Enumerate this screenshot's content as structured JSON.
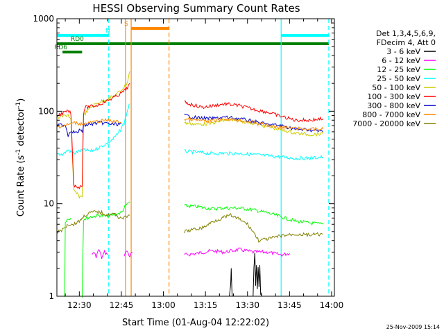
{
  "chart_data": {
    "type": "line",
    "title": "HESSI Observing Summary Count Rates",
    "xlabel": "Start Time (01-Aug-04 12:22:02)",
    "ylabel_main": "Count Rate (s",
    "ylabel_sup1": "-1",
    "ylabel_mid": " detector",
    "ylabel_sup2": "-1",
    "ylabel_end": ")",
    "x_ticks": [
      {
        "label": "12:30",
        "min": 8
      },
      {
        "label": "12:45",
        "min": 23
      },
      {
        "label": "13:00",
        "min": 38
      },
      {
        "label": "13:15",
        "min": 53
      },
      {
        "label": "13:30",
        "min": 68
      },
      {
        "label": "13:45",
        "min": 83
      },
      {
        "label": "14:00",
        "min": 98
      }
    ],
    "y_ticks": [
      {
        "label": "1",
        "v": 1
      },
      {
        "label": "10",
        "v": 10
      },
      {
        "label": "100",
        "v": 100
      },
      {
        "label": "1000",
        "v": 1000
      }
    ],
    "xlim_minutes": [
      0,
      99
    ],
    "ylim": [
      1,
      1000
    ],
    "y_scale": "log",
    "legend_header": [
      "Det 1,3,4,5,6,9,",
      "FDecim 4, Att 0"
    ],
    "series": [
      {
        "name": "3 - 6 keV",
        "color": "#000000",
        "segments": [
          [
            [
              61.5,
              1
            ],
            [
              62,
              1.3
            ],
            [
              62.2,
              2
            ],
            [
              62.4,
              1.2
            ],
            [
              62.6,
              1
            ]
          ],
          [
            [
              70,
              1
            ],
            [
              70.3,
              2
            ],
            [
              70.6,
              3
            ],
            [
              70.9,
              1.3
            ],
            [
              71.2,
              2.2
            ],
            [
              71.5,
              1.2
            ],
            [
              71.8,
              2
            ],
            [
              72.1,
              1.3
            ],
            [
              72.4,
              2.1
            ],
            [
              72.7,
              1.1
            ],
            [
              73,
              1
            ]
          ]
        ]
      },
      {
        "name": "6 - 12 keV",
        "color": "#ff00ff",
        "segments": [
          [
            [
              12.5,
              2.8
            ],
            [
              13,
              3
            ],
            [
              14,
              2.7
            ],
            [
              15,
              3.2
            ],
            [
              16,
              2.6
            ],
            [
              17,
              3
            ],
            [
              18,
              2.8
            ]
          ],
          [
            [
              24,
              2.8
            ],
            [
              25,
              3.1
            ],
            [
              26,
              2.7
            ],
            [
              27,
              3
            ]
          ],
          [
            [
              45.5,
              2.8
            ],
            [
              50,
              2.9
            ],
            [
              55,
              3.1
            ],
            [
              60,
              3
            ],
            [
              65,
              3.2
            ],
            [
              70,
              3
            ],
            [
              75,
              3
            ],
            [
              80,
              2.8
            ],
            [
              83,
              2.9
            ]
          ]
        ]
      },
      {
        "name": "12 - 25 keV",
        "color": "#00ff00",
        "segments": [
          [
            [
              2.8,
              1
            ],
            [
              3,
              6.5
            ],
            [
              4,
              6.8
            ],
            [
              5,
              7
            ]
          ],
          [
            [
              9,
              1
            ],
            [
              9.5,
              6.8
            ],
            [
              12,
              7.2
            ],
            [
              15,
              7.5
            ],
            [
              18,
              7.3
            ],
            [
              20,
              7.6
            ],
            [
              23,
              8
            ],
            [
              24.5,
              9.5
            ],
            [
              26,
              10.5
            ]
          ],
          [
            [
              45.5,
              9.5
            ],
            [
              50,
              9.3
            ],
            [
              55,
              8.8
            ],
            [
              60,
              9
            ],
            [
              65,
              9
            ],
            [
              70,
              8.6
            ],
            [
              75,
              8
            ],
            [
              80,
              7.2
            ],
            [
              85,
              6.5
            ],
            [
              90,
              6.2
            ],
            [
              95,
              6
            ]
          ]
        ]
      },
      {
        "name": "25 - 50 keV",
        "color": "#00ffff",
        "segments": [
          [
            [
              0,
              35
            ],
            [
              2,
              34
            ],
            [
              4,
              38
            ],
            [
              6,
              35
            ],
            [
              8,
              37
            ],
            [
              10,
              38
            ],
            [
              12,
              37
            ],
            [
              14,
              39
            ],
            [
              16,
              42
            ],
            [
              18,
              45
            ],
            [
              20,
              50
            ],
            [
              22,
              58
            ],
            [
              24,
              75
            ],
            [
              25.5,
              110
            ],
            [
              26,
              120
            ]
          ],
          [
            [
              45.5,
              37
            ],
            [
              50,
              36
            ],
            [
              55,
              35
            ],
            [
              60,
              35
            ],
            [
              65,
              35
            ],
            [
              70,
              34
            ],
            [
              75,
              33
            ],
            [
              80,
              32
            ],
            [
              85,
              31
            ],
            [
              90,
              31
            ],
            [
              95,
              32
            ]
          ]
        ]
      },
      {
        "name": "50 - 100 keV",
        "color": "#cccc00",
        "segments": [
          [
            [
              0,
              85
            ],
            [
              2,
              88
            ],
            [
              4,
              92
            ],
            [
              5,
              80
            ],
            [
              6,
              14
            ],
            [
              8,
              12
            ],
            [
              9,
              12
            ],
            [
              9.5,
              90
            ],
            [
              12,
              110
            ],
            [
              15,
              125
            ],
            [
              18,
              135
            ],
            [
              21,
              150
            ],
            [
              23,
              170
            ],
            [
              25,
              200
            ],
            [
              26,
              270
            ]
          ],
          [
            [
              45.5,
              75
            ],
            [
              50,
              72
            ],
            [
              55,
              74
            ],
            [
              60,
              80
            ],
            [
              65,
              79
            ],
            [
              70,
              74
            ],
            [
              75,
              68
            ],
            [
              80,
              63
            ],
            [
              85,
              58
            ],
            [
              90,
              56
            ],
            [
              95,
              57
            ]
          ]
        ]
      },
      {
        "name": "100 - 300 keV",
        "color": "#ff0000",
        "segments": [
          [
            [
              0,
              90
            ],
            [
              2,
              95
            ],
            [
              4,
              100
            ],
            [
              5,
              95
            ],
            [
              6,
              16
            ],
            [
              8,
              15
            ],
            [
              9,
              16
            ],
            [
              9.5,
              95
            ],
            [
              10,
              110
            ],
            [
              14,
              115
            ],
            [
              18,
              130
            ],
            [
              22,
              150
            ],
            [
              24,
              165
            ],
            [
              25.5,
              185
            ],
            [
              26,
              200
            ]
          ],
          [
            [
              45.5,
              125
            ],
            [
              48,
              118
            ],
            [
              52,
              110
            ],
            [
              56,
              115
            ],
            [
              60,
              120
            ],
            [
              65,
              115
            ],
            [
              70,
              105
            ],
            [
              75,
              98
            ],
            [
              80,
              88
            ],
            [
              85,
              80
            ],
            [
              90,
              80
            ],
            [
              95,
              83
            ]
          ]
        ]
      },
      {
        "name": "300 - 800 keV",
        "color": "#0000cc",
        "segments": [
          [
            [
              0,
              70
            ],
            [
              3,
              72
            ],
            [
              4,
              55
            ],
            [
              5,
              62
            ],
            [
              6,
              60
            ],
            [
              7,
              58
            ],
            [
              8,
              62
            ],
            [
              9,
              60
            ],
            [
              9.5,
              70
            ],
            [
              12,
              72
            ],
            [
              15,
              75
            ],
            [
              18,
              74
            ],
            [
              20,
              72
            ],
            [
              23,
              73
            ]
          ],
          [
            [
              45.5,
              90
            ],
            [
              50,
              85
            ],
            [
              55,
              83
            ],
            [
              60,
              86
            ],
            [
              65,
              83
            ],
            [
              70,
              78
            ],
            [
              75,
              72
            ],
            [
              80,
              70
            ],
            [
              85,
              64
            ],
            [
              90,
              63
            ],
            [
              95,
              60
            ]
          ]
        ]
      },
      {
        "name": "800 - 7000 keV",
        "color": "#ff8800",
        "segments": [
          [
            [
              0,
              68
            ],
            [
              3,
              70
            ],
            [
              6,
              75
            ],
            [
              9,
              73
            ],
            [
              12,
              75
            ],
            [
              15,
              78
            ],
            [
              18,
              80
            ],
            [
              20,
              78
            ],
            [
              23,
              76
            ]
          ],
          [
            [
              45.5,
              82
            ],
            [
              50,
              80
            ],
            [
              55,
              78
            ],
            [
              60,
              83
            ],
            [
              65,
              80
            ],
            [
              70,
              76
            ],
            [
              75,
              70
            ],
            [
              80,
              67
            ],
            [
              85,
              65
            ],
            [
              90,
              64
            ],
            [
              95,
              64
            ]
          ]
        ]
      },
      {
        "name": "7000 - 20000 keV",
        "color": "#808000",
        "segments": [
          [
            [
              0,
              5
            ],
            [
              2,
              5.2
            ],
            [
              4,
              6
            ],
            [
              6,
              6
            ],
            [
              8,
              6.5
            ],
            [
              10,
              7.5
            ],
            [
              12,
              8
            ],
            [
              14,
              8.2
            ],
            [
              16,
              8
            ],
            [
              18,
              7.5
            ],
            [
              20,
              7.8
            ],
            [
              22,
              7.2
            ],
            [
              24,
              7
            ],
            [
              26,
              7.5
            ]
          ],
          [
            [
              45.5,
              5
            ],
            [
              48,
              5.2
            ],
            [
              52,
              5.5
            ],
            [
              56,
              6.5
            ],
            [
              60,
              7.2
            ],
            [
              62,
              7.5
            ],
            [
              65,
              6.8
            ],
            [
              68,
              6
            ],
            [
              70,
              5
            ],
            [
              72,
              4
            ],
            [
              76,
              4.2
            ],
            [
              80,
              4.5
            ],
            [
              85,
              4.7
            ],
            [
              90,
              4.6
            ],
            [
              95,
              4.7
            ]
          ]
        ]
      }
    ],
    "flags": [
      {
        "label": "N",
        "color": "#00ffff",
        "y": 0.06,
        "segments": [
          [
            0,
            18.5
          ],
          [
            80,
            97
          ]
        ]
      },
      {
        "label": "S",
        "color": "#ff8800",
        "y": 0.035,
        "segments": [
          [
            26.5,
            40
          ]
        ]
      },
      {
        "label": "RD0",
        "color": "#008000",
        "y": 0.09,
        "segments": [
          [
            0,
            97
          ]
        ]
      },
      {
        "label": "RD6",
        "color": "#008000",
        "y": 0.12,
        "segments": [
          [
            2,
            9
          ]
        ]
      }
    ],
    "vertical_lines": [
      {
        "min": 18.5,
        "color": "#00ffff",
        "dashed": true
      },
      {
        "min": 24.5,
        "color": "#ff8800",
        "dashed": false
      },
      {
        "min": 26.5,
        "color": "#ff8800",
        "dashed": false
      },
      {
        "min": 40,
        "color": "#ff8800",
        "dashed": true
      },
      {
        "min": 80,
        "color": "#00ffff",
        "dashed": false
      },
      {
        "min": 97,
        "color": "#00ffff",
        "dashed": true
      }
    ],
    "grid": false,
    "legend_position": "right"
  },
  "footer_date": "25-Nov-2009 15:14"
}
